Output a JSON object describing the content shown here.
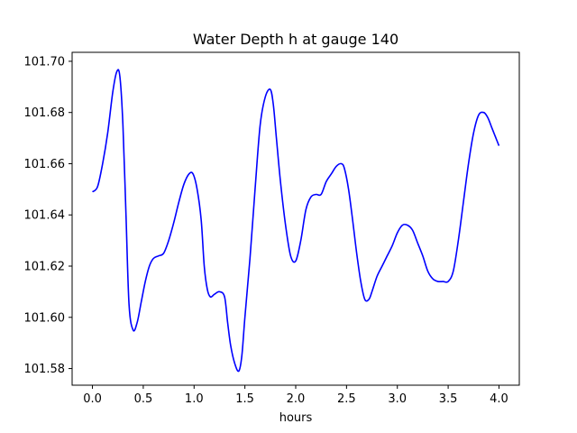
{
  "chart_data": {
    "type": "line",
    "title": "Water Depth h at gauge 140",
    "xlabel": "hours",
    "ylabel": "",
    "xlim": [
      -0.2,
      4.2
    ],
    "ylim": [
      101.5735,
      101.7035
    ],
    "grid": false,
    "xticks": [
      0.0,
      0.5,
      1.0,
      1.5,
      2.0,
      2.5,
      3.0,
      3.5,
      4.0
    ],
    "xtick_labels": [
      "0.0",
      "0.5",
      "1.0",
      "1.5",
      "2.0",
      "2.5",
      "3.0",
      "3.5",
      "4.0"
    ],
    "yticks": [
      101.58,
      101.6,
      101.62,
      101.64,
      101.66,
      101.68,
      101.7
    ],
    "ytick_labels": [
      "101.58",
      "101.60",
      "101.62",
      "101.64",
      "101.66",
      "101.68",
      "101.70"
    ],
    "series": [
      {
        "color": "#0000ff",
        "x": [
          0.0,
          0.05,
          0.1,
          0.15,
          0.2,
          0.24,
          0.27,
          0.3,
          0.33,
          0.36,
          0.4,
          0.44,
          0.48,
          0.52,
          0.56,
          0.6,
          0.65,
          0.7,
          0.75,
          0.8,
          0.85,
          0.9,
          0.95,
          0.99,
          1.03,
          1.07,
          1.1,
          1.13,
          1.16,
          1.2,
          1.25,
          1.3,
          1.33,
          1.36,
          1.4,
          1.44,
          1.47,
          1.5,
          1.55,
          1.6,
          1.65,
          1.7,
          1.75,
          1.78,
          1.81,
          1.85,
          1.9,
          1.95,
          2.0,
          2.05,
          2.1,
          2.15,
          2.2,
          2.25,
          2.3,
          2.35,
          2.4,
          2.45,
          2.48,
          2.52,
          2.56,
          2.6,
          2.64,
          2.68,
          2.72,
          2.75,
          2.8,
          2.85,
          2.9,
          2.95,
          3.0,
          3.05,
          3.1,
          3.15,
          3.2,
          3.25,
          3.3,
          3.35,
          3.4,
          3.45,
          3.5,
          3.55,
          3.6,
          3.65,
          3.7,
          3.75,
          3.8,
          3.85,
          3.89,
          3.93,
          3.97,
          4.0
        ],
        "y": [
          101.649,
          101.651,
          101.66,
          101.672,
          101.688,
          101.696,
          101.694,
          101.675,
          101.64,
          101.605,
          101.595,
          101.598,
          101.606,
          101.614,
          101.62,
          101.623,
          101.624,
          101.625,
          101.63,
          101.637,
          101.645,
          101.652,
          101.656,
          101.656,
          101.65,
          101.638,
          101.62,
          101.611,
          101.608,
          101.609,
          101.61,
          101.608,
          101.598,
          101.589,
          101.582,
          101.579,
          101.585,
          101.6,
          101.623,
          101.65,
          101.675,
          101.686,
          101.689,
          101.683,
          101.67,
          101.653,
          101.636,
          101.624,
          101.622,
          101.63,
          101.642,
          101.647,
          101.648,
          101.648,
          101.653,
          101.656,
          101.659,
          101.66,
          101.658,
          101.65,
          101.638,
          101.625,
          101.614,
          101.607,
          101.607,
          101.61,
          101.616,
          101.62,
          101.624,
          101.628,
          101.633,
          101.636,
          101.636,
          101.634,
          101.629,
          101.624,
          101.618,
          101.615,
          101.614,
          101.614,
          101.614,
          101.618,
          101.63,
          101.645,
          101.66,
          101.672,
          101.679,
          101.68,
          101.678,
          101.674,
          101.67,
          101.667
        ]
      }
    ]
  }
}
